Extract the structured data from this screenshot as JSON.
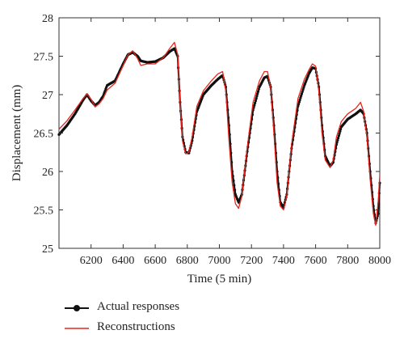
{
  "chart_data": {
    "type": "line",
    "xlabel": "Time (5 min)",
    "ylabel": "Displacement (mm)",
    "xlim": [
      6000,
      8000
    ],
    "ylim": [
      25,
      28
    ],
    "x_ticks": [
      6200,
      6400,
      6600,
      6800,
      7000,
      7200,
      7400,
      7600,
      7800,
      8000
    ],
    "y_ticks": [
      25,
      25.5,
      26,
      26.5,
      27,
      27.5,
      28
    ],
    "grid": false,
    "legend_position": "bottom-left",
    "series": [
      {
        "name": "Actual responses",
        "color": "#111111",
        "marker": "circle",
        "points": [
          [
            6000,
            26.48
          ],
          [
            6050,
            26.6
          ],
          [
            6100,
            26.75
          ],
          [
            6150,
            26.93
          ],
          [
            6175,
            27.0
          ],
          [
            6200,
            26.92
          ],
          [
            6225,
            26.86
          ],
          [
            6250,
            26.9
          ],
          [
            6275,
            26.98
          ],
          [
            6300,
            27.12
          ],
          [
            6350,
            27.18
          ],
          [
            6400,
            27.4
          ],
          [
            6430,
            27.52
          ],
          [
            6460,
            27.55
          ],
          [
            6490,
            27.5
          ],
          [
            6510,
            27.44
          ],
          [
            6550,
            27.42
          ],
          [
            6600,
            27.43
          ],
          [
            6650,
            27.48
          ],
          [
            6690,
            27.56
          ],
          [
            6720,
            27.6
          ],
          [
            6740,
            27.5
          ],
          [
            6755,
            26.9
          ],
          [
            6770,
            26.45
          ],
          [
            6790,
            26.25
          ],
          [
            6810,
            26.24
          ],
          [
            6830,
            26.4
          ],
          [
            6860,
            26.78
          ],
          [
            6900,
            27.0
          ],
          [
            6950,
            27.12
          ],
          [
            6990,
            27.2
          ],
          [
            7020,
            27.25
          ],
          [
            7040,
            27.1
          ],
          [
            7060,
            26.6
          ],
          [
            7080,
            26.0
          ],
          [
            7100,
            25.7
          ],
          [
            7120,
            25.6
          ],
          [
            7140,
            25.7
          ],
          [
            7170,
            26.2
          ],
          [
            7210,
            26.8
          ],
          [
            7250,
            27.1
          ],
          [
            7280,
            27.22
          ],
          [
            7300,
            27.24
          ],
          [
            7320,
            27.1
          ],
          [
            7340,
            26.6
          ],
          [
            7360,
            26.0
          ],
          [
            7380,
            25.6
          ],
          [
            7400,
            25.53
          ],
          [
            7420,
            25.7
          ],
          [
            7450,
            26.3
          ],
          [
            7490,
            26.85
          ],
          [
            7530,
            27.12
          ],
          [
            7560,
            27.28
          ],
          [
            7580,
            27.35
          ],
          [
            7600,
            27.34
          ],
          [
            7620,
            27.1
          ],
          [
            7640,
            26.6
          ],
          [
            7660,
            26.2
          ],
          [
            7690,
            26.07
          ],
          [
            7710,
            26.12
          ],
          [
            7730,
            26.35
          ],
          [
            7760,
            26.58
          ],
          [
            7800,
            26.68
          ],
          [
            7850,
            26.75
          ],
          [
            7880,
            26.8
          ],
          [
            7900,
            26.75
          ],
          [
            7920,
            26.5
          ],
          [
            7940,
            26.0
          ],
          [
            7960,
            25.55
          ],
          [
            7975,
            25.33
          ],
          [
            7990,
            25.45
          ],
          [
            8000,
            25.85
          ]
        ]
      },
      {
        "name": "Reconstructions",
        "color": "#e8241c",
        "marker": "none",
        "points": [
          [
            6000,
            26.55
          ],
          [
            6050,
            26.66
          ],
          [
            6100,
            26.8
          ],
          [
            6150,
            26.95
          ],
          [
            6175,
            27.01
          ],
          [
            6200,
            26.94
          ],
          [
            6225,
            26.84
          ],
          [
            6250,
            26.88
          ],
          [
            6275,
            26.95
          ],
          [
            6300,
            27.06
          ],
          [
            6350,
            27.15
          ],
          [
            6400,
            27.38
          ],
          [
            6430,
            27.52
          ],
          [
            6460,
            27.57
          ],
          [
            6490,
            27.47
          ],
          [
            6510,
            27.38
          ],
          [
            6550,
            27.4
          ],
          [
            6600,
            27.4
          ],
          [
            6650,
            27.48
          ],
          [
            6690,
            27.6
          ],
          [
            6720,
            27.68
          ],
          [
            6740,
            27.52
          ],
          [
            6755,
            26.9
          ],
          [
            6770,
            26.4
          ],
          [
            6790,
            26.23
          ],
          [
            6810,
            26.25
          ],
          [
            6830,
            26.45
          ],
          [
            6860,
            26.85
          ],
          [
            6900,
            27.05
          ],
          [
            6950,
            27.18
          ],
          [
            6990,
            27.27
          ],
          [
            7020,
            27.3
          ],
          [
            7040,
            27.05
          ],
          [
            7060,
            26.4
          ],
          [
            7080,
            25.85
          ],
          [
            7100,
            25.58
          ],
          [
            7120,
            25.52
          ],
          [
            7140,
            25.68
          ],
          [
            7170,
            26.25
          ],
          [
            7210,
            26.9
          ],
          [
            7250,
            27.18
          ],
          [
            7280,
            27.3
          ],
          [
            7300,
            27.3
          ],
          [
            7320,
            27.08
          ],
          [
            7340,
            26.5
          ],
          [
            7360,
            25.85
          ],
          [
            7380,
            25.55
          ],
          [
            7400,
            25.5
          ],
          [
            7420,
            25.68
          ],
          [
            7450,
            26.35
          ],
          [
            7490,
            26.95
          ],
          [
            7530,
            27.2
          ],
          [
            7560,
            27.33
          ],
          [
            7580,
            27.4
          ],
          [
            7600,
            27.37
          ],
          [
            7620,
            27.05
          ],
          [
            7640,
            26.5
          ],
          [
            7660,
            26.15
          ],
          [
            7690,
            26.05
          ],
          [
            7710,
            26.15
          ],
          [
            7730,
            26.45
          ],
          [
            7760,
            26.65
          ],
          [
            7800,
            26.75
          ],
          [
            7850,
            26.82
          ],
          [
            7880,
            26.9
          ],
          [
            7900,
            26.78
          ],
          [
            7920,
            26.45
          ],
          [
            7940,
            25.9
          ],
          [
            7960,
            25.45
          ],
          [
            7975,
            25.3
          ],
          [
            7990,
            25.6
          ],
          [
            8000,
            25.95
          ]
        ]
      }
    ]
  }
}
